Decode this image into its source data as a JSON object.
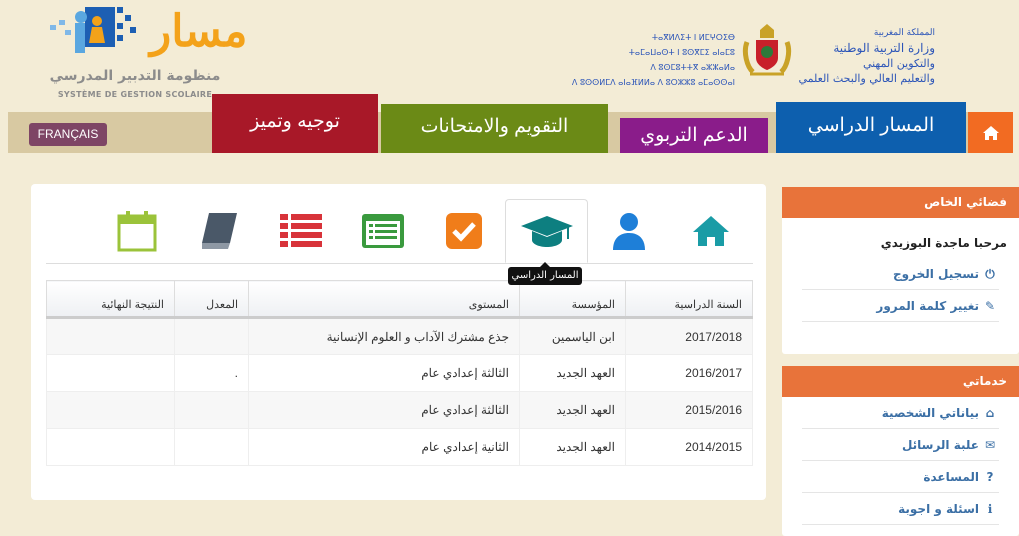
{
  "header": {
    "logo_word": "مسار",
    "logo_ar": "منظومة التدبير المدرسي",
    "logo_fr": "SYSTÈME DE GESTION SCOLAIRE",
    "tifinagh": [
      "ⵜⴰⴳⵍⴷⵉⵜ ⵏ ⵍⵎⵖⵔⵉⴱ",
      "ⵜⴰⵎⴰⵡⴰⵙⵜ ⵏ ⵓⵙⴳⵎⵉ ⴰⵏⴰⵎⵓ",
      "ⴷ ⵓⵙⵎⵓⵜⵜⴳ ⴰⵣⵣⴰⵍⴰ",
      "ⴷ ⵓⵙⵙⵍⵎⴷ ⴰⵏⴰⴼⵍⵍⴰ ⴷ ⵓⵔⵣⵣⵓ ⴰⵎⴰⵙⵙⴰⵏ"
    ],
    "ministry": [
      "المملكة المغربية",
      "وزارة التربية الوطنية",
      "والتكوين المهني",
      "والتعليم العالي والبحث العلمي"
    ]
  },
  "nav": {
    "language": "FRANÇAIS",
    "items": [
      {
        "label": "توجيه وتميز",
        "color": "#a81828"
      },
      {
        "label": "التقويم والامتحانات",
        "color": "#6b8a16"
      },
      {
        "label": "الدعم التربوي",
        "color": "#8a1c8a"
      },
      {
        "label": "المسار الدراسي",
        "color": "#0d5fae"
      }
    ],
    "home_color": "#f26b22"
  },
  "tabs": {
    "active": "academic-path",
    "tooltip": "المسار الدراسي",
    "icons": [
      "home-icon",
      "user-icon",
      "graduation-cap-icon",
      "checkbox-icon",
      "list-alt-icon",
      "list-icon",
      "book-icon",
      "calendar-icon"
    ]
  },
  "table": {
    "headers": [
      "السنة الدراسية",
      "المؤسسة",
      "المستوى",
      "المعدل",
      "النتيجة النهائية"
    ],
    "rows": [
      [
        "2017/2018",
        "ابن الياسمين",
        "جذع مشترك الآداب و العلوم الإنسانية",
        "",
        ""
      ],
      [
        "2016/2017",
        "العهد الجديد",
        "الثالثة إعدادي عام",
        ".",
        ""
      ],
      [
        "2015/2016",
        "العهد الجديد",
        "الثالثة إعدادي عام",
        "",
        ""
      ],
      [
        "2014/2015",
        "العهد الجديد",
        "الثانية إعدادي عام",
        "",
        ""
      ]
    ]
  },
  "sidebar": {
    "account_title": "فضائي الخاص",
    "welcome": "مرحبا ماجدة البوزيدي",
    "logout": "تسجيل الخروج",
    "change_password": "تغيير كلمة المرور",
    "services_title": "خدماتي",
    "services": [
      "بياناتي الشخصية",
      "علبة الرسائل",
      "المساعدة",
      "اسئلة و اجوبة"
    ]
  }
}
